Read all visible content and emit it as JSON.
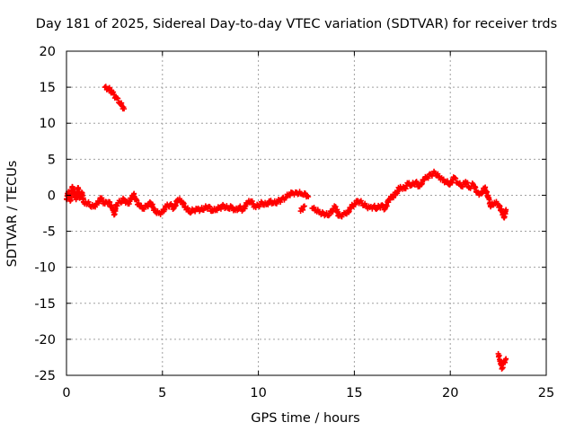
{
  "chart_data": {
    "type": "scatter",
    "title": "Day 181 of 2025, Sidereal Day-to-day VTEC variation (SDTVAR) for receiver trds",
    "xlabel": "GPS time / hours",
    "ylabel": "SDTVAR / TECUs",
    "xlim": [
      0,
      25
    ],
    "ylim": [
      -25,
      20
    ],
    "xticks": [
      0,
      5,
      10,
      15,
      20,
      25
    ],
    "yticks": [
      -25,
      -20,
      -15,
      -10,
      -5,
      0,
      5,
      10,
      15,
      20
    ],
    "grid": true,
    "marker": "+",
    "series": [
      {
        "name": "SDTVAR",
        "color": "#ff0000",
        "points": [
          [
            0.0,
            -0.5
          ],
          [
            0.1,
            0.5
          ],
          [
            0.2,
            -0.8
          ],
          [
            0.3,
            1.2
          ],
          [
            0.4,
            0.3
          ],
          [
            0.5,
            -0.6
          ],
          [
            0.6,
            1.0
          ],
          [
            0.7,
            -0.3
          ],
          [
            0.8,
            0.4
          ],
          [
            0.9,
            -1.0
          ],
          [
            1.0,
            -0.9
          ],
          [
            1.2,
            -1.3
          ],
          [
            1.4,
            -1.6
          ],
          [
            1.6,
            -1.1
          ],
          [
            1.8,
            -0.5
          ],
          [
            2.0,
            -1.2
          ],
          [
            2.2,
            -0.9
          ],
          [
            2.4,
            -1.9
          ],
          [
            2.5,
            -2.6
          ],
          [
            2.6,
            -1.3
          ],
          [
            2.8,
            -0.9
          ],
          [
            3.0,
            -0.6
          ],
          [
            3.2,
            -1.2
          ],
          [
            3.4,
            -0.4
          ],
          [
            3.5,
            0.1
          ],
          [
            3.6,
            -0.6
          ],
          [
            3.8,
            -1.5
          ],
          [
            4.0,
            -1.9
          ],
          [
            4.2,
            -1.4
          ],
          [
            4.4,
            -1.1
          ],
          [
            4.6,
            -2.1
          ],
          [
            4.8,
            -2.5
          ],
          [
            5.0,
            -2.3
          ],
          [
            5.2,
            -1.6
          ],
          [
            5.4,
            -1.3
          ],
          [
            5.6,
            -1.8
          ],
          [
            5.8,
            -0.6
          ],
          [
            6.0,
            -0.9
          ],
          [
            6.2,
            -1.6
          ],
          [
            6.4,
            -2.3
          ],
          [
            6.6,
            -2.1
          ],
          [
            6.8,
            -1.9
          ],
          [
            7.0,
            -2.0
          ],
          [
            7.2,
            -1.8
          ],
          [
            7.4,
            -1.6
          ],
          [
            7.6,
            -2.2
          ],
          [
            7.8,
            -2.0
          ],
          [
            8.0,
            -1.7
          ],
          [
            8.2,
            -1.5
          ],
          [
            8.4,
            -1.8
          ],
          [
            8.6,
            -1.6
          ],
          [
            8.8,
            -2.1
          ],
          [
            9.0,
            -1.7
          ],
          [
            9.2,
            -2.0
          ],
          [
            9.4,
            -1.2
          ],
          [
            9.6,
            -0.8
          ],
          [
            9.8,
            -1.5
          ],
          [
            10.0,
            -1.4
          ],
          [
            10.2,
            -1.1
          ],
          [
            10.4,
            -1.3
          ],
          [
            10.6,
            -0.8
          ],
          [
            10.8,
            -1.1
          ],
          [
            11.0,
            -0.9
          ],
          [
            11.2,
            -0.6
          ],
          [
            11.4,
            -0.4
          ],
          [
            11.6,
            0.1
          ],
          [
            11.8,
            0.3
          ],
          [
            12.0,
            0.4
          ],
          [
            12.2,
            0.2
          ],
          [
            12.4,
            0.3
          ],
          [
            12.6,
            -0.2
          ],
          [
            12.2,
            -2.2
          ],
          [
            12.4,
            -1.5
          ],
          [
            12.8,
            -1.8
          ],
          [
            13.0,
            -2.1
          ],
          [
            13.2,
            -2.4
          ],
          [
            13.4,
            -2.5
          ],
          [
            13.6,
            -2.8
          ],
          [
            13.8,
            -2.3
          ],
          [
            14.0,
            -1.6
          ],
          [
            14.2,
            -2.9
          ],
          [
            14.4,
            -2.7
          ],
          [
            14.6,
            -2.6
          ],
          [
            14.8,
            -1.8
          ],
          [
            15.0,
            -1.2
          ],
          [
            15.2,
            -0.8
          ],
          [
            15.4,
            -1.1
          ],
          [
            15.6,
            -1.5
          ],
          [
            15.8,
            -1.7
          ],
          [
            16.0,
            -1.6
          ],
          [
            16.2,
            -1.8
          ],
          [
            16.4,
            -1.4
          ],
          [
            16.6,
            -1.9
          ],
          [
            16.8,
            -0.6
          ],
          [
            17.0,
            -0.2
          ],
          [
            17.2,
            0.4
          ],
          [
            17.4,
            1.2
          ],
          [
            17.6,
            0.9
          ],
          [
            17.8,
            1.6
          ],
          [
            18.0,
            1.4
          ],
          [
            18.2,
            1.8
          ],
          [
            18.4,
            1.2
          ],
          [
            18.6,
            2.1
          ],
          [
            18.8,
            2.5
          ],
          [
            19.0,
            2.9
          ],
          [
            19.2,
            3.1
          ],
          [
            19.4,
            2.6
          ],
          [
            19.6,
            2.2
          ],
          [
            19.8,
            1.8
          ],
          [
            20.0,
            1.6
          ],
          [
            20.2,
            2.4
          ],
          [
            20.4,
            1.7
          ],
          [
            20.6,
            1.2
          ],
          [
            20.8,
            1.9
          ],
          [
            21.0,
            1.1
          ],
          [
            21.2,
            1.5
          ],
          [
            21.4,
            0.4
          ],
          [
            21.6,
            0.2
          ],
          [
            21.8,
            1.0
          ],
          [
            22.0,
            -0.4
          ],
          [
            22.1,
            -1.6
          ],
          [
            22.3,
            -1.0
          ],
          [
            22.5,
            -1.3
          ],
          [
            22.7,
            -2.3
          ],
          [
            22.8,
            -3.1
          ],
          [
            22.9,
            -2.0
          ],
          [
            2.0,
            15.0
          ],
          [
            2.2,
            14.8
          ],
          [
            2.4,
            14.2
          ],
          [
            2.6,
            13.5
          ],
          [
            2.8,
            12.8
          ],
          [
            3.0,
            12.0
          ],
          [
            22.5,
            -22.0
          ],
          [
            22.6,
            -23.0
          ],
          [
            22.7,
            -24.0
          ],
          [
            22.8,
            -23.2
          ],
          [
            22.9,
            -22.7
          ]
        ]
      }
    ]
  }
}
